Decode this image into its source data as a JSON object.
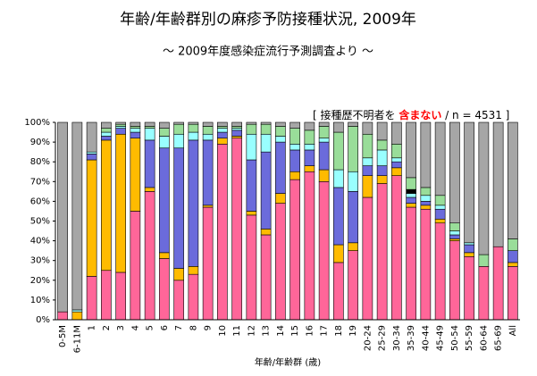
{
  "chart_data": {
    "type": "stacked-bar",
    "title": "年齢/年齢群別の麻疹予防接種状況, 2009年",
    "subtitle": "～ 2009年度感染症流行予測調査より ～",
    "annotation": [
      "[ 接種歴不明者を",
      "含まない",
      "/ n = 4531 ]"
    ],
    "x_label": "年齢/年齢群 (歳)",
    "categories": [
      "0-5M",
      "6-11M",
      "1",
      "2",
      "3",
      "4",
      "5",
      "6",
      "7",
      "8",
      "9",
      "10",
      "11",
      "12",
      "13",
      "14",
      "15",
      "16",
      "17",
      "18",
      "19",
      "20-24",
      "25-29",
      "30-34",
      "35-39",
      "40-44",
      "45-49",
      "50-54",
      "55-59",
      "60-64",
      "65-69",
      "All"
    ],
    "series": [
      {
        "color": "#ff6699",
        "values": [
          4,
          0,
          22,
          25,
          24,
          55,
          65,
          31,
          20,
          23,
          57,
          89,
          92,
          53,
          43,
          59,
          71,
          75,
          70,
          29,
          35,
          62,
          69,
          73,
          57,
          56,
          49,
          40,
          32,
          27,
          37,
          27
        ]
      },
      {
        "color": "#ffbb00",
        "values": [
          0,
          4,
          59,
          66,
          70,
          37,
          2,
          3,
          6,
          4,
          1,
          3,
          1,
          2,
          3,
          5,
          4,
          3,
          6,
          9,
          4,
          11,
          4,
          4,
          2,
          2,
          2,
          1,
          2,
          0,
          0,
          2
        ]
      },
      {
        "color": "#6b6bdb",
        "values": [
          0,
          0,
          3,
          2,
          3,
          3,
          24,
          53,
          61,
          64,
          33,
          3,
          3,
          26,
          39,
          26,
          11,
          8,
          14,
          29,
          26,
          5,
          5,
          3,
          3,
          2,
          5,
          2,
          4,
          0,
          0,
          6
        ]
      },
      {
        "color": "#99ffff",
        "values": [
          0,
          1,
          1,
          2,
          1,
          2,
          6,
          6,
          7,
          4,
          3,
          2,
          1,
          13,
          9,
          3,
          3,
          3,
          2,
          9,
          10,
          4,
          8,
          2,
          2,
          3,
          2,
          2,
          1,
          0,
          0,
          0
        ]
      },
      {
        "color": "#000000",
        "values": [
          0,
          0,
          0,
          0,
          0,
          0,
          0,
          0,
          0,
          0,
          0,
          0,
          0,
          0,
          0,
          0,
          0,
          0,
          0,
          0,
          0,
          0,
          0,
          0,
          2,
          0,
          0,
          0,
          0,
          0,
          0,
          0
        ]
      },
      {
        "color": "#99dd99",
        "values": [
          0,
          0,
          0,
          2,
          1,
          1,
          1,
          4,
          5,
          4,
          4,
          1,
          1,
          5,
          5,
          5,
          8,
          7,
          6,
          19,
          23,
          12,
          5,
          7,
          6,
          4,
          5,
          4,
          0,
          6,
          0,
          6
        ]
      },
      {
        "color": "#a6a6a6",
        "values": [
          96,
          95,
          15,
          3,
          1,
          2,
          2,
          3,
          1,
          1,
          2,
          2,
          2,
          1,
          1,
          2,
          3,
          4,
          2,
          5,
          2,
          6,
          9,
          11,
          28,
          33,
          37,
          51,
          61,
          67,
          63,
          59
        ]
      }
    ],
    "ylim": [
      0,
      100
    ],
    "yticks": [
      {
        "value": 0,
        "label": "0%"
      },
      {
        "value": 10,
        "label": "10%"
      },
      {
        "value": 20,
        "label": "20%"
      },
      {
        "value": 30,
        "label": "30%"
      },
      {
        "value": 40,
        "label": "40%"
      },
      {
        "value": 50,
        "label": "50%"
      },
      {
        "value": 60,
        "label": "60%"
      },
      {
        "value": 70,
        "label": "70%"
      },
      {
        "value": 80,
        "label": "80%"
      },
      {
        "value": 90,
        "label": "90%"
      },
      {
        "value": 100,
        "label": "100%"
      }
    ],
    "grid": false
  }
}
